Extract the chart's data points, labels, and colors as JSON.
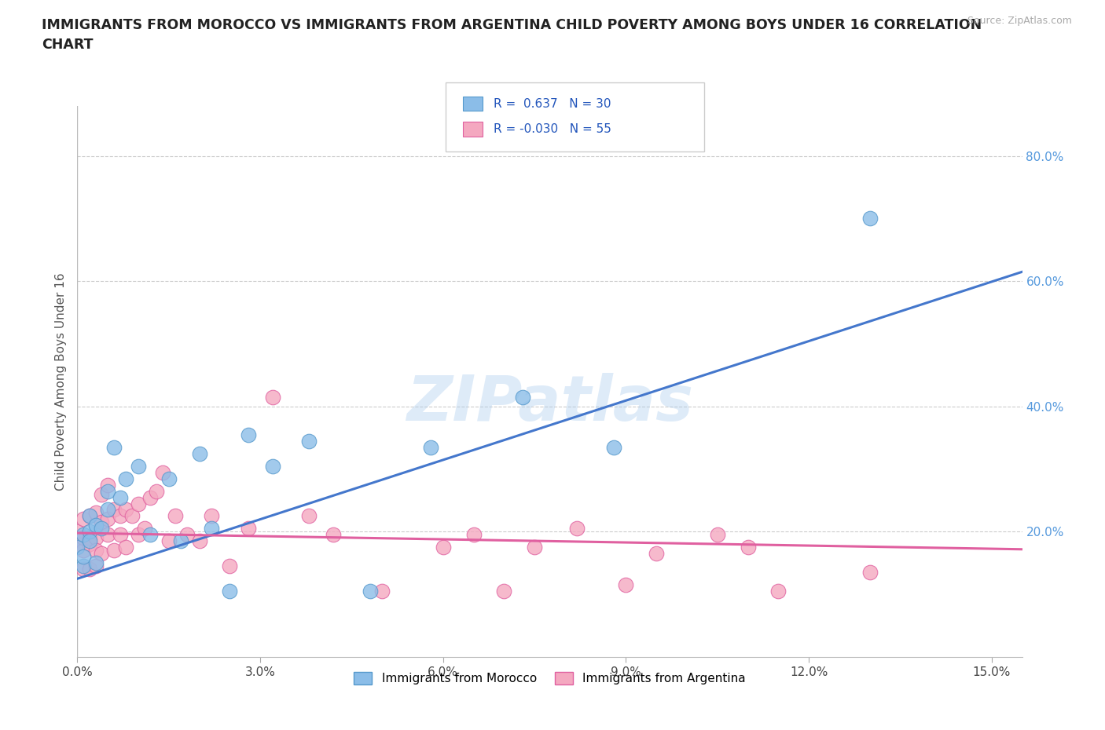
{
  "title": "IMMIGRANTS FROM MOROCCO VS IMMIGRANTS FROM ARGENTINA CHILD POVERTY AMONG BOYS UNDER 16 CORRELATION\nCHART",
  "source_text": "Source: ZipAtlas.com",
  "ylabel": "Child Poverty Among Boys Under 16",
  "xlim": [
    0.0,
    0.155
  ],
  "ylim": [
    0.0,
    0.88
  ],
  "yticks_right": [
    0.2,
    0.4,
    0.6,
    0.8
  ],
  "ytick_labels_right": [
    "20.0%",
    "40.0%",
    "60.0%",
    "80.0%"
  ],
  "xticks": [
    0.0,
    0.03,
    0.06,
    0.09,
    0.12,
    0.15
  ],
  "xtick_labels": [
    "0.0%",
    "3.0%",
    "6.0%",
    "9.0%",
    "12.0%",
    "15.0%"
  ],
  "gridline_color": "#cccccc",
  "background_color": "#ffffff",
  "watermark_text": "ZIPatlas",
  "watermark_color": "#aaccee",
  "morocco_color": "#8bbde8",
  "argentina_color": "#f4a8c0",
  "morocco_edge": "#5599cc",
  "argentina_edge": "#e060a0",
  "morocco_R": 0.637,
  "morocco_N": 30,
  "argentina_R": -0.03,
  "argentina_N": 55,
  "morocco_line_color": "#4477cc",
  "argentina_line_color": "#e060a0",
  "legend_R_color": "#2255bb",
  "morocco_x": [
    0.0,
    0.001,
    0.001,
    0.001,
    0.002,
    0.002,
    0.002,
    0.003,
    0.003,
    0.004,
    0.005,
    0.005,
    0.006,
    0.007,
    0.008,
    0.01,
    0.012,
    0.015,
    0.017,
    0.02,
    0.022,
    0.025,
    0.028,
    0.032,
    0.038,
    0.048,
    0.058,
    0.073,
    0.088,
    0.13
  ],
  "morocco_y": [
    0.175,
    0.145,
    0.195,
    0.16,
    0.2,
    0.185,
    0.225,
    0.21,
    0.15,
    0.205,
    0.235,
    0.265,
    0.335,
    0.255,
    0.285,
    0.305,
    0.195,
    0.285,
    0.185,
    0.325,
    0.205,
    0.105,
    0.355,
    0.305,
    0.345,
    0.105,
    0.335,
    0.415,
    0.335,
    0.7
  ],
  "argentina_x": [
    0.0,
    0.0,
    0.001,
    0.001,
    0.001,
    0.001,
    0.002,
    0.002,
    0.002,
    0.002,
    0.003,
    0.003,
    0.003,
    0.003,
    0.004,
    0.004,
    0.004,
    0.005,
    0.005,
    0.005,
    0.006,
    0.006,
    0.007,
    0.007,
    0.008,
    0.008,
    0.009,
    0.01,
    0.01,
    0.011,
    0.012,
    0.013,
    0.014,
    0.015,
    0.016,
    0.018,
    0.02,
    0.022,
    0.025,
    0.028,
    0.032,
    0.038,
    0.042,
    0.05,
    0.06,
    0.065,
    0.07,
    0.075,
    0.082,
    0.09,
    0.095,
    0.105,
    0.11,
    0.115,
    0.13
  ],
  "argentina_y": [
    0.18,
    0.2,
    0.17,
    0.14,
    0.19,
    0.22,
    0.14,
    0.19,
    0.225,
    0.18,
    0.145,
    0.19,
    0.23,
    0.17,
    0.215,
    0.26,
    0.165,
    0.275,
    0.22,
    0.195,
    0.235,
    0.17,
    0.225,
    0.195,
    0.235,
    0.175,
    0.225,
    0.245,
    0.195,
    0.205,
    0.255,
    0.265,
    0.295,
    0.185,
    0.225,
    0.195,
    0.185,
    0.225,
    0.145,
    0.205,
    0.415,
    0.225,
    0.195,
    0.105,
    0.175,
    0.195,
    0.105,
    0.175,
    0.205,
    0.115,
    0.165,
    0.195,
    0.175,
    0.105,
    0.135
  ],
  "morocco_line_x": [
    0.0,
    0.155
  ],
  "morocco_line_y": [
    0.125,
    0.615
  ],
  "argentina_line_x": [
    0.0,
    0.155
  ],
  "argentina_line_y": [
    0.198,
    0.172
  ]
}
